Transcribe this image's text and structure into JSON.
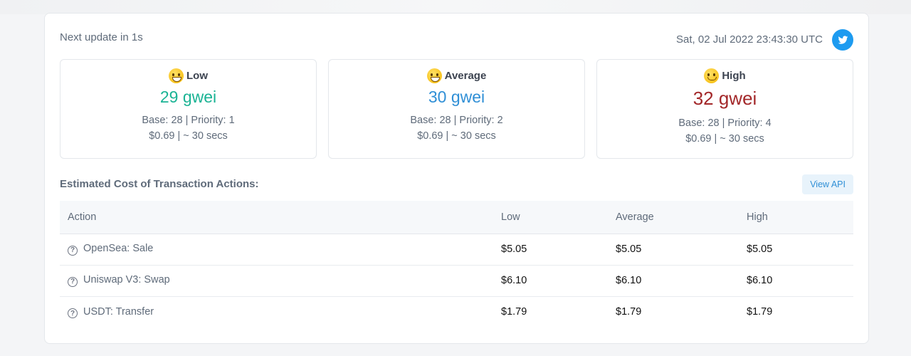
{
  "header": {
    "next_update": "Next update in 1s",
    "timestamp": "Sat, 02 Jul 2022 23:43:30 UTC",
    "twitter_icon": "twitter-icon"
  },
  "tiers": [
    {
      "label": "Low",
      "emoji": "grinning-face-icon",
      "gwei": "29 gwei",
      "base_priority": "Base: 28 | Priority: 1",
      "cost_time": "$0.69 | ~ 30 secs",
      "color": "#1ab394"
    },
    {
      "label": "Average",
      "emoji": "smiling-face-icon",
      "gwei": "30 gwei",
      "base_priority": "Base: 28 | Priority: 2",
      "cost_time": "$0.69 | ~ 30 secs",
      "color": "#2f8fd6"
    },
    {
      "label": "High",
      "emoji": "slightly-smiling-face-icon",
      "gwei": "32 gwei",
      "base_priority": "Base: 28 | Priority: 4",
      "cost_time": "$0.69 | ~ 30 secs",
      "color": "#a3282a"
    }
  ],
  "section": {
    "title": "Estimated Cost of Transaction Actions:",
    "view_api_label": "View API"
  },
  "table": {
    "headers": [
      "Action",
      "Low",
      "Average",
      "High"
    ],
    "rows": [
      {
        "action": "OpenSea: Sale",
        "low": "$5.05",
        "average": "$5.05",
        "high": "$5.05"
      },
      {
        "action": "Uniswap V3: Swap",
        "low": "$6.10",
        "average": "$6.10",
        "high": "$6.10"
      },
      {
        "action": "USDT: Transfer",
        "low": "$1.79",
        "average": "$1.79",
        "high": "$1.79"
      }
    ],
    "help_icon": "?"
  }
}
